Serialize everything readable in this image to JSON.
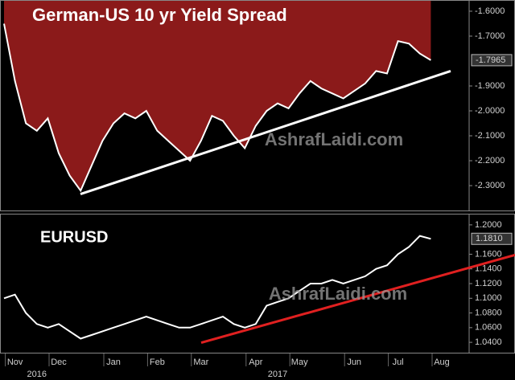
{
  "chart_data": [
    {
      "type": "area",
      "title": "German-US 10 yr Yield Spread",
      "watermark": "AshrafLaidi.com",
      "color": "#ffffff",
      "fill": "#8b1a1a",
      "values": [
        -1.65,
        -1.88,
        -2.05,
        -2.08,
        -2.03,
        -2.17,
        -2.26,
        -2.32,
        -2.22,
        -2.12,
        -2.05,
        -2.01,
        -2.03,
        -2.0,
        -2.08,
        -2.12,
        -2.16,
        -2.2,
        -2.12,
        -2.02,
        -2.04,
        -2.1,
        -2.15,
        -2.06,
        -2.0,
        -1.97,
        -1.99,
        -1.93,
        -1.88,
        -1.91,
        -1.93,
        -1.95,
        -1.92,
        -1.89,
        -1.84,
        -1.85,
        -1.72,
        -1.73,
        -1.77,
        -1.7965,
        null
      ],
      "ylim": [
        -2.403,
        -1.555
      ],
      "yticks": [
        {
          "value": -1.6,
          "label": "-1.6000"
        },
        {
          "value": -1.7,
          "label": "-1.7000"
        },
        {
          "value": -1.9,
          "label": "-1.9000"
        },
        {
          "value": -2.0,
          "label": "-2.0000"
        },
        {
          "value": -2.1,
          "label": "-2.1000"
        },
        {
          "value": -2.2,
          "label": "-2.2000"
        },
        {
          "value": -2.3,
          "label": "-2.3000"
        }
      ]
    },
    {
      "type": "line",
      "title": "EURUSD",
      "watermark": "AshrafLaidi.com",
      "color": "#ffffff",
      "values": [
        1.1,
        1.105,
        1.08,
        1.065,
        1.06,
        1.065,
        1.055,
        1.045,
        1.05,
        1.055,
        1.06,
        1.065,
        1.07,
        1.075,
        1.07,
        1.065,
        1.06,
        1.06,
        1.065,
        1.07,
        1.075,
        1.065,
        1.06,
        1.065,
        1.09,
        1.095,
        1.1,
        1.11,
        1.12,
        1.12,
        1.125,
        1.12,
        1.125,
        1.13,
        1.14,
        1.145,
        1.16,
        1.17,
        1.185,
        1.181,
        null
      ],
      "value_labels": [
        null,
        null,
        null,
        null,
        null,
        null,
        null,
        null,
        null,
        null,
        null,
        null,
        null,
        null,
        null,
        null,
        null,
        null,
        null,
        null,
        null,
        null,
        null,
        null,
        null,
        null,
        null,
        null,
        null,
        null,
        null,
        null,
        null,
        null,
        null,
        null,
        null,
        null,
        null,
        "1.1810",
        null
      ],
      "ylim": [
        1.0248,
        1.2152
      ],
      "yticks": [
        {
          "value": 1.2,
          "label": "1.2000"
        },
        {
          "value": 1.16,
          "label": "1.1600"
        },
        {
          "value": 1.14,
          "label": "1.1400"
        },
        {
          "value": 1.12,
          "label": "1.1200"
        },
        {
          "value": 1.1,
          "label": "1.1000"
        },
        {
          "value": 1.08,
          "label": "1.0800"
        },
        {
          "value": 1.06,
          "label": "1.0600"
        },
        {
          "value": 1.04,
          "label": "1.0400"
        }
      ],
      "categories": [
        null,
        "Nov",
        null,
        null,
        null,
        "Dec",
        null,
        null,
        null,
        null,
        "Jan",
        null,
        null,
        null,
        "Feb",
        null,
        null,
        null,
        "Mar",
        null,
        null,
        null,
        null,
        "Apr",
        null,
        null,
        null,
        "May",
        null,
        null,
        null,
        null,
        "Jun",
        null,
        null,
        null,
        "Jul",
        null,
        null,
        null,
        "Aug"
      ],
      "years": [
        null,
        null,
        null,
        "2016",
        null,
        null,
        null,
        null,
        null,
        null,
        null,
        null,
        null,
        null,
        null,
        null,
        null,
        null,
        null,
        null,
        null,
        null,
        null,
        null,
        null,
        "2017",
        null,
        null,
        null,
        null,
        null,
        null,
        null,
        null,
        null,
        null,
        null,
        null,
        null,
        null,
        null
      ]
    }
  ]
}
